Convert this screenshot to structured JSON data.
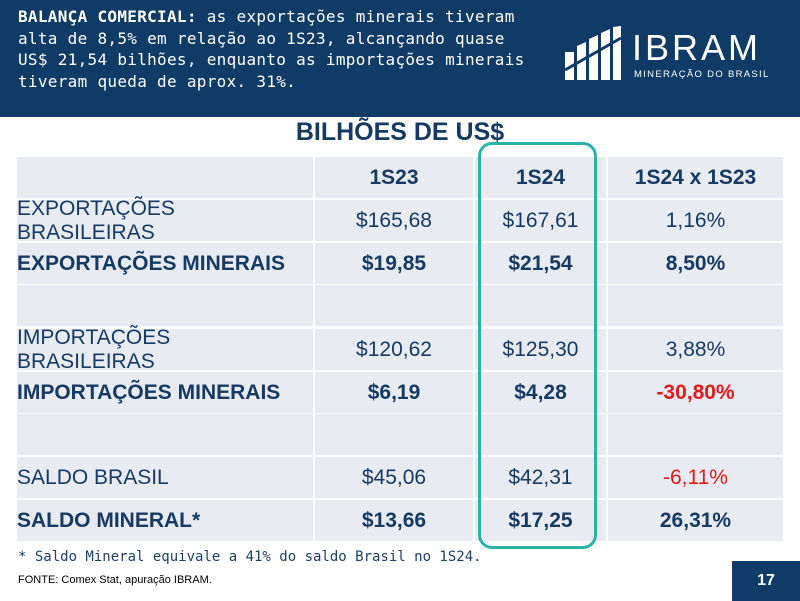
{
  "header": {
    "lead": "BALANÇA COMERCIAL:",
    "text": "as exportações minerais tiveram alta de 8,5% em relação ao 1S23, alcançando quase US$ 21,54 bilhões, enquanto as importações minerais tiveram queda de aprox. 31%."
  },
  "logo": {
    "name": "IBRAM",
    "subtitle": "MINERAÇÃO DO BRASIL"
  },
  "table": {
    "title": "BILHÕES DE US$",
    "columns": [
      "",
      "1S23",
      "1S24",
      "1S24 x 1S23"
    ],
    "rows": [
      {
        "label": "EXPORTAÇÕES BRASILEIRAS",
        "s23": "$165,68",
        "s24": "$167,61",
        "change": "1,16%"
      },
      {
        "label": "EXPORTAÇÕES MINERAIS",
        "s23": "$19,85",
        "s24": "$21,54",
        "change": "8,50%"
      },
      {
        "label": "",
        "s23": "",
        "s24": "",
        "change": ""
      },
      {
        "label": "IMPORTAÇÕES BRASILEIRAS",
        "s23": "$120,62",
        "s24": "$125,30",
        "change": "3,88%"
      },
      {
        "label": "IMPORTAÇÕES MINERAIS",
        "s23": "$6,19",
        "s24": "$4,28",
        "change": "-30,80%"
      },
      {
        "label": "",
        "s23": "",
        "s24": "",
        "change": ""
      },
      {
        "label": "SALDO BRASIL",
        "s23": "$45,06",
        "s24": "$42,31",
        "change": "-6,11%"
      },
      {
        "label": "SALDO MINERAL*",
        "s23": "$13,66",
        "s24": "$17,25",
        "change": "26,31%"
      }
    ]
  },
  "footnote": "* Saldo Mineral equivale a 41% do saldo Brasil no 1S24.",
  "source": "FONTE: Comex Stat, apuração IBRAM.",
  "page_number": "17",
  "colors": {
    "navy": "#0f3b66",
    "teal": "#2bb3a8",
    "negative": "#e21b1b",
    "cell_bg": "#e9ebf3"
  }
}
